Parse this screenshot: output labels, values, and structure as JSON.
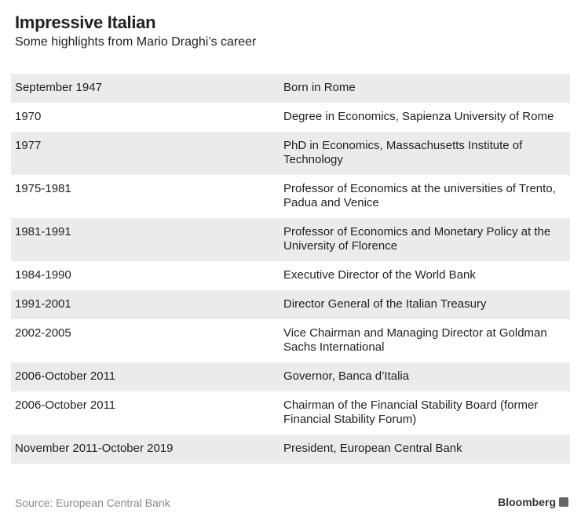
{
  "header": {
    "title": "Impressive Italian",
    "subtitle": "Some highlights from Mario Draghi’s career"
  },
  "table": {
    "rows": [
      [
        "September 1947",
        "Born in Rome"
      ],
      [
        "1970",
        "Degree in Economics, Sapienza University of Rome"
      ],
      [
        "1977",
        "PhD in Economics, Massachusetts Institute of Technology"
      ],
      [
        "1975-1981",
        "Professor of Economics at the universities of Trento, Padua and Venice"
      ],
      [
        "1981-1991",
        "Professor of Economics and Monetary Policy at the University of Florence"
      ],
      [
        "1984-1990",
        "Executive Director of the World Bank"
      ],
      [
        "1991-2001",
        "Director General of the Italian Treasury"
      ],
      [
        "2002-2005",
        "Vice Chairman and Managing Director at Goldman Sachs International"
      ],
      [
        "2006-October 2011",
        "Governor, Banca d’Italia"
      ],
      [
        "2006-October 2011",
        "Chairman of the Financial Stability Board (former Financial Stability Forum)"
      ],
      [
        "November 2011-October 2019",
        "President, European Central Bank"
      ]
    ]
  },
  "footer": {
    "source": "Source: European Central Bank",
    "logo": "Bloomberg"
  }
}
